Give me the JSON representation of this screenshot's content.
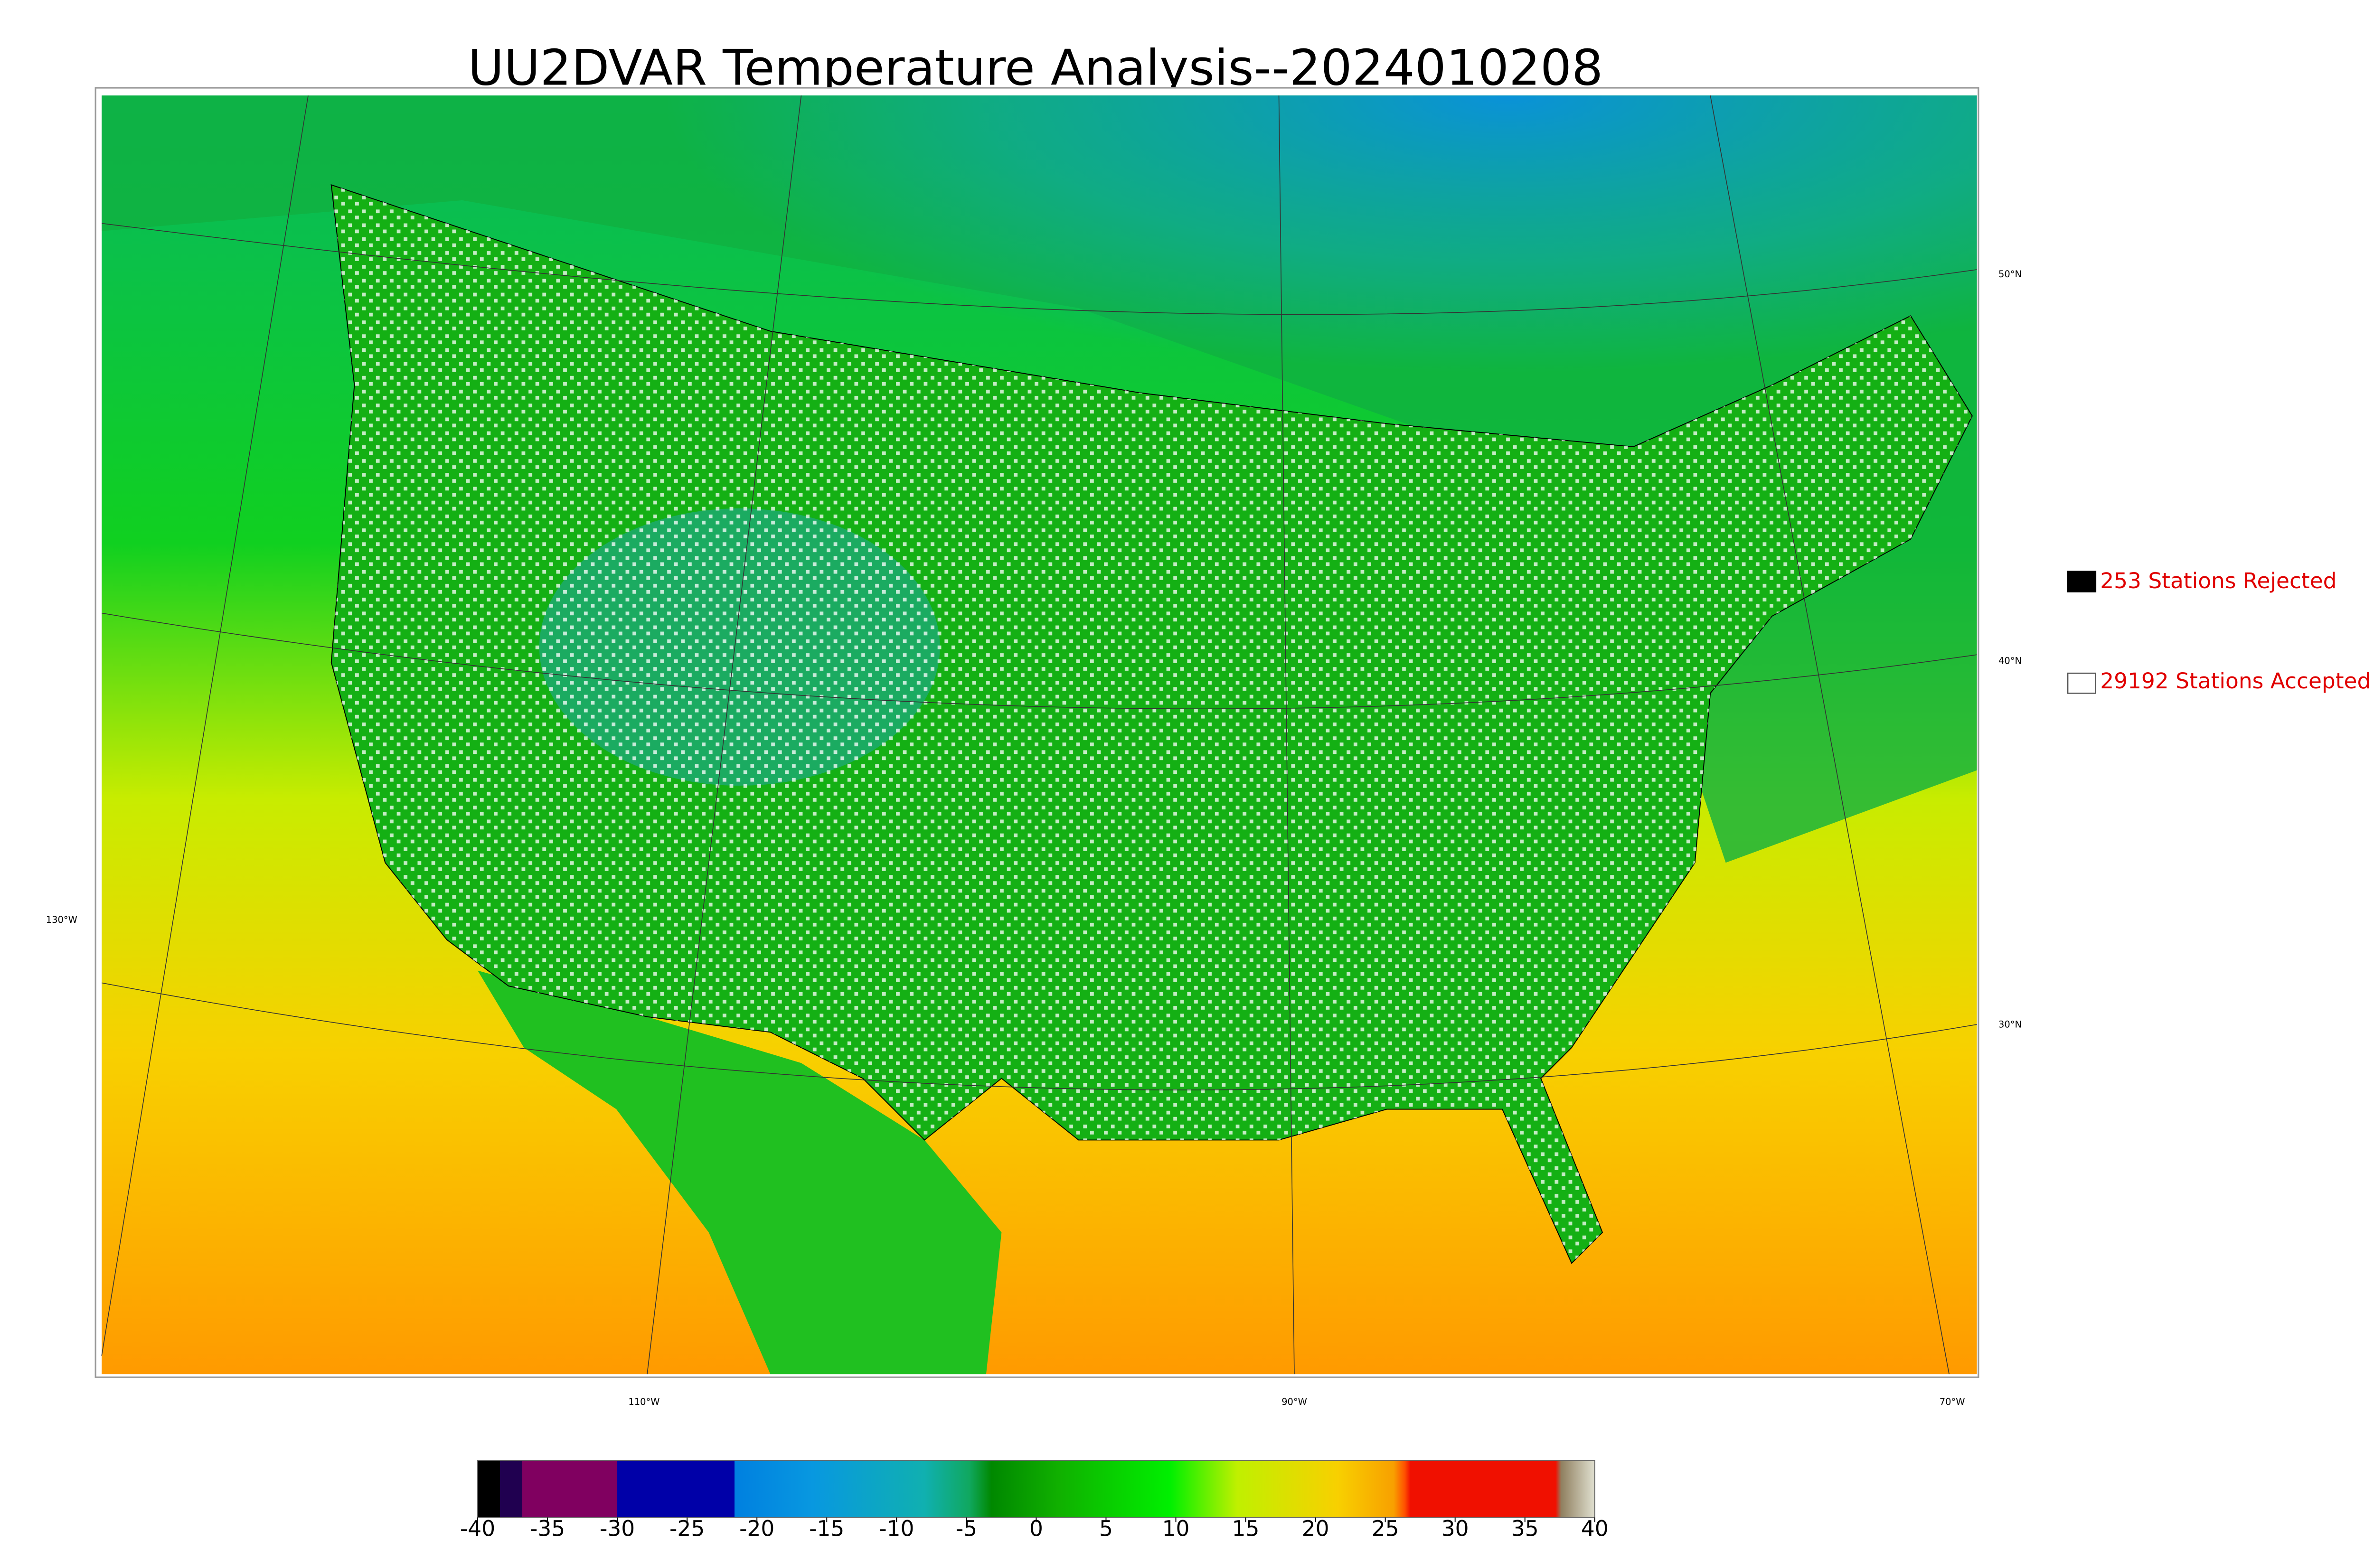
{
  "title": "UU2DVAR Temperature Analysis--2024010208",
  "legend": [
    {
      "label": "253 Stations Rejected"
    },
    {
      "label": "29192 Stations Accepted"
    }
  ],
  "latitude_labels": [
    "50°N",
    "40°N",
    "30°N"
  ],
  "longitude_labels": [
    "130°W",
    "110°W",
    "90°W",
    "70°W"
  ],
  "colorbar": {
    "lim": [
      -40,
      40
    ],
    "ticks": [
      -40,
      -35,
      -30,
      -25,
      -20,
      -15,
      -10,
      -5,
      0,
      5,
      10,
      15,
      20,
      25,
      30,
      35,
      40
    ]
  }
}
